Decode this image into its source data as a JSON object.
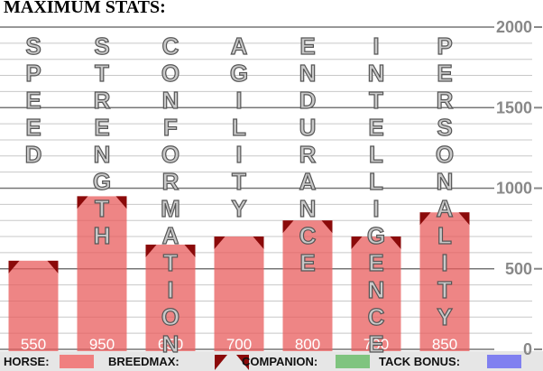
{
  "chart_data": {
    "type": "bar",
    "title": "MAXIMUM STATS:",
    "categories": [
      "SPEED",
      "STRENGTH",
      "CONFORMATION",
      "AGILITY",
      "ENDURANCE",
      "INTELLIGENCE",
      "PERSONALITY"
    ],
    "values": [
      550,
      950,
      650,
      700,
      800,
      700,
      850
    ],
    "color": "#e85c5c",
    "ylim": [
      0,
      2000
    ],
    "yticks": [
      0,
      500,
      1000,
      1500,
      2000
    ],
    "grid": true,
    "legend": [
      {
        "label": "HORSE:",
        "color": "#f08080"
      },
      {
        "label": "BREEDMAX:",
        "color": "#8b0a0a"
      },
      {
        "label": "COMPANION:",
        "color": "#7fc47f"
      },
      {
        "label": "TACK BONUS:",
        "color": "#8080f0"
      }
    ]
  }
}
